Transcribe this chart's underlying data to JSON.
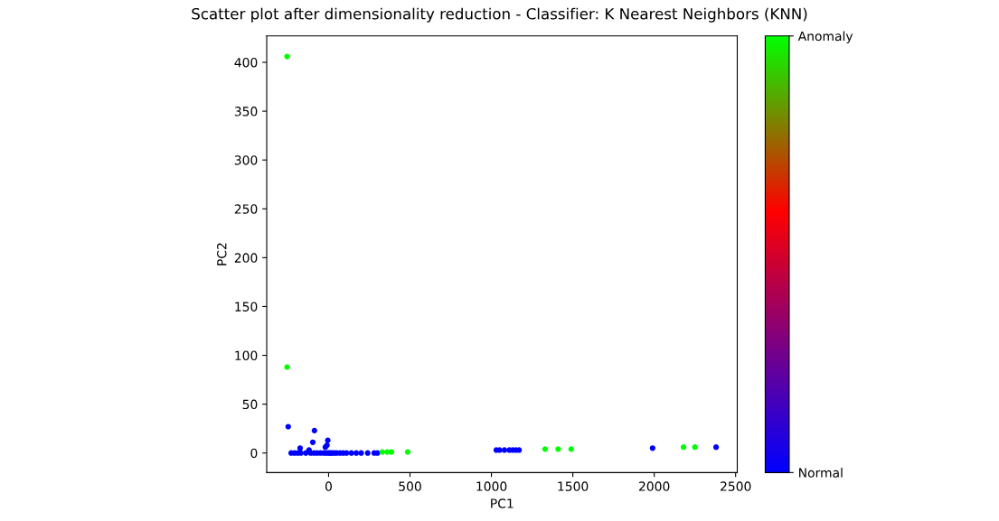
{
  "chart_data": {
    "type": "scatter",
    "title": "Scatter plot after dimensionality reduction - Classifier: K Nearest Neighbors (KNN)",
    "xlabel": "PC1",
    "ylabel": "PC2",
    "x": [
      -255,
      -255,
      -248,
      -87,
      -97,
      -5,
      -175,
      -10,
      -20,
      -120,
      -230,
      -210,
      -190,
      -170,
      -140,
      -110,
      -90,
      -70,
      -50,
      -30,
      -15,
      0,
      10,
      20,
      35,
      50,
      70,
      90,
      110,
      140,
      170,
      200,
      240,
      280,
      300,
      330,
      360,
      386,
      486,
      1030,
      1050,
      1080,
      1110,
      1130,
      1150,
      1170,
      1330,
      1410,
      1490,
      1990,
      2180,
      2250,
      2380
    ],
    "values": [
      406,
      88,
      27,
      23,
      11,
      13,
      5,
      8,
      6,
      3,
      0,
      0,
      0,
      0,
      0,
      0,
      0,
      0,
      0,
      0,
      0,
      0,
      0,
      0,
      0,
      0,
      0,
      0,
      0,
      0,
      0,
      0,
      0,
      0,
      0,
      1,
      1,
      1,
      1,
      3,
      3,
      3,
      3,
      3,
      3,
      3,
      4,
      4,
      4,
      5,
      6,
      6,
      6
    ],
    "cvalues": [
      1,
      1,
      0,
      0,
      0,
      0,
      0,
      0,
      0,
      0,
      0,
      0,
      0,
      0,
      0,
      0,
      0,
      0,
      0,
      0,
      0,
      0,
      0,
      0,
      0,
      0,
      0,
      0,
      0,
      0,
      0,
      0,
      0,
      0,
      0,
      1,
      1,
      1,
      1,
      0,
      0,
      0,
      0,
      0,
      0,
      0,
      1,
      1,
      1,
      0,
      1,
      1,
      0
    ],
    "xlim": [
      -380,
      2510
    ],
    "xticks": [
      0,
      500,
      1000,
      1500,
      2000,
      2500
    ],
    "ylim": [
      -20,
      427
    ],
    "yticks": [
      0,
      50,
      100,
      150,
      200,
      250,
      300,
      350,
      400
    ],
    "clim": [
      0,
      1
    ],
    "cticks": [
      {
        "value": 0,
        "label": "Normal"
      },
      {
        "value": 1,
        "label": "Anomaly"
      }
    ],
    "grid": false,
    "legend": false
  }
}
